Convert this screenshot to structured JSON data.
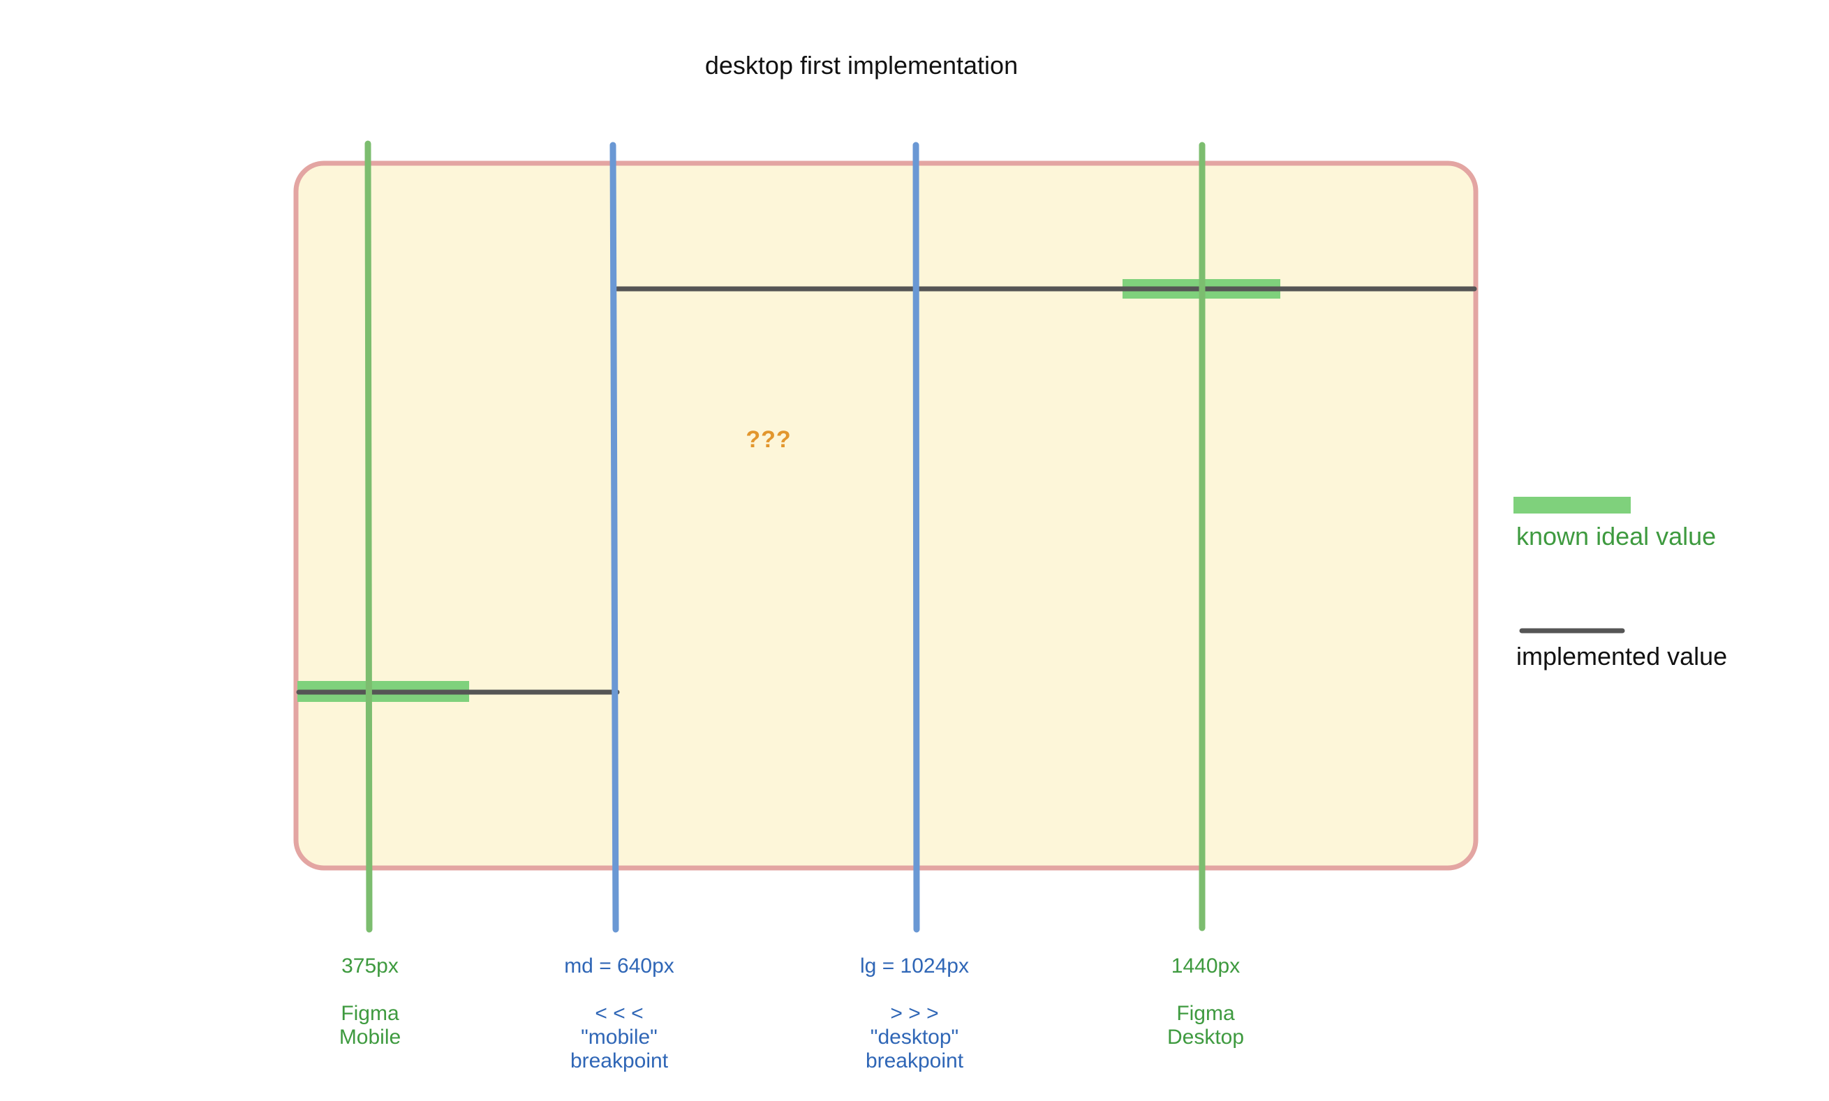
{
  "title": "desktop first implementation",
  "unknown_region_label": "???",
  "breakpoints": [
    {
      "id": "figma-mobile",
      "px_label": "375px",
      "desc_lines": [
        "Figma",
        "Mobile"
      ],
      "kind": "figma"
    },
    {
      "id": "md",
      "px_label": "md = 640px",
      "desc_lines": [
        "< < <",
        "\"mobile\"",
        "breakpoint"
      ],
      "kind": "css"
    },
    {
      "id": "lg",
      "px_label": "lg = 1024px",
      "desc_lines": [
        "> > >",
        "\"desktop\"",
        "breakpoint"
      ],
      "kind": "css"
    },
    {
      "id": "figma-desktop",
      "px_label": "1440px",
      "desc_lines": [
        "Figma",
        "Desktop"
      ],
      "kind": "figma"
    }
  ],
  "legend": {
    "known_ideal_label": "known ideal value",
    "implemented_label": "implemented value"
  },
  "colors": {
    "figma_line": "#7cbd6f",
    "breakpoint_line": "#6a98d4",
    "known_ideal": "#7fd17c",
    "implemented": "#555555",
    "region_fill": "#fdf6d9",
    "region_border": "#e3a5a2",
    "unknown_text": "#e2962d",
    "figma_text": "#3e9a3f",
    "breakpoint_text": "#2f66b6"
  }
}
